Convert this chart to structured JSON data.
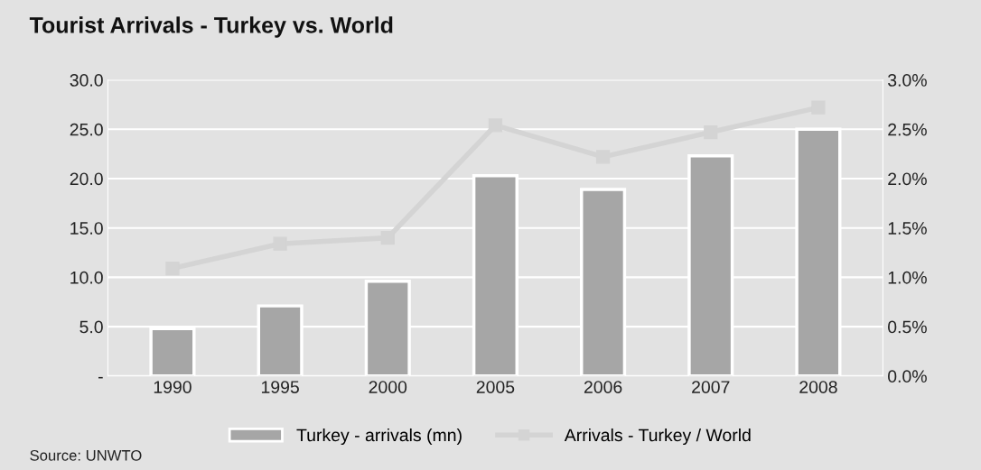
{
  "chart_data": {
    "type": "bar",
    "title": "Tourist Arrivals - Turkey vs. World",
    "categories": [
      "1990",
      "1995",
      "2000",
      "2005",
      "2006",
      "2007",
      "2008"
    ],
    "series": [
      {
        "name": "Turkey - arrivals (mn)",
        "color": "#a6a6a6",
        "values": [
          4.8,
          7.1,
          9.6,
          20.3,
          18.9,
          22.3,
          25.0
        ]
      },
      {
        "name": "Arrivals - Turkey / World",
        "type": "line",
        "axis": "y2",
        "color": "#d4d4d4",
        "values": [
          1.09,
          1.34,
          1.4,
          2.54,
          2.22,
          2.47,
          2.72
        ]
      }
    ],
    "ylim": [
      0,
      30
    ],
    "yticks": [
      {
        "value": 0,
        "label": "-"
      },
      {
        "value": 5,
        "label": "5.0"
      },
      {
        "value": 10,
        "label": "10.0"
      },
      {
        "value": 15,
        "label": "15.0"
      },
      {
        "value": 20,
        "label": "20.0"
      },
      {
        "value": 25,
        "label": "25.0"
      },
      {
        "value": 30,
        "label": "30.0"
      }
    ],
    "y2lim": [
      0,
      3
    ],
    "y2ticks": [
      {
        "value": 0,
        "label": "0.0%"
      },
      {
        "value": 0.5,
        "label": "0.5%"
      },
      {
        "value": 1,
        "label": "1.0%"
      },
      {
        "value": 1.5,
        "label": "1.5%"
      },
      {
        "value": 2,
        "label": "2.0%"
      },
      {
        "value": 2.5,
        "label": "2.5%"
      },
      {
        "value": 3,
        "label": "3.0%"
      }
    ],
    "grid": "y",
    "legend": "bottom",
    "marker": "square",
    "line_style": "solid",
    "annotations": [
      "Source: UNWTO"
    ]
  }
}
